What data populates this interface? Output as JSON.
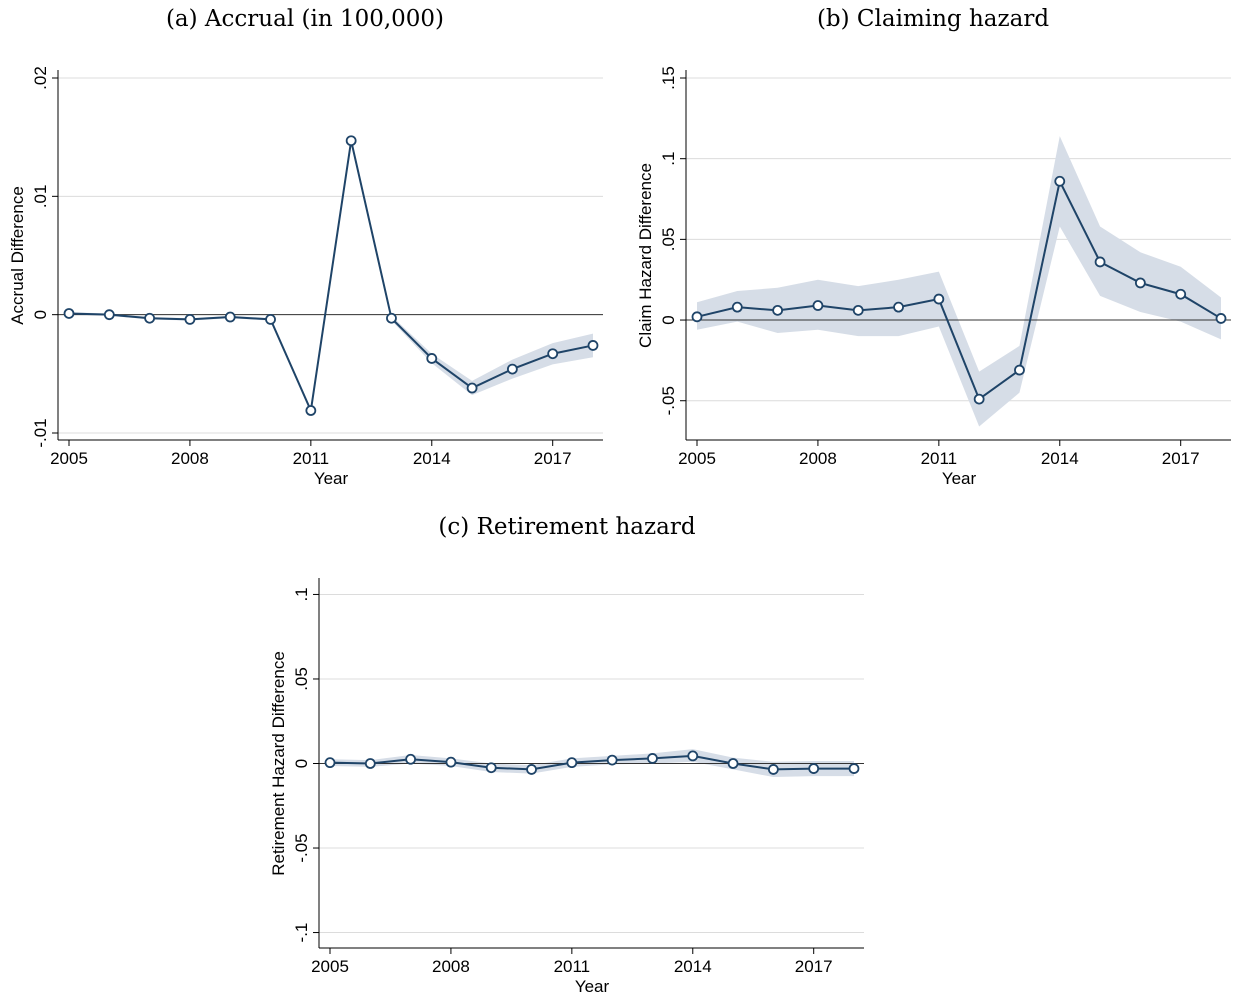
{
  "panels": [
    {
      "caption": "(a) Accrual (in 100,000)",
      "chart_data": {
        "type": "line",
        "xlabel": "Year",
        "ylabel": "Accrual Difference",
        "x": [
          2005,
          2006,
          2007,
          2008,
          2009,
          2010,
          2011,
          2012,
          2013,
          2014,
          2015,
          2016,
          2017,
          2018
        ],
        "series": [
          {
            "values": [
              0.0001,
              0.0,
              -0.0003,
              -0.0004,
              -0.0002,
              -0.0004,
              -0.0081,
              0.0147,
              -0.0003,
              -0.0037,
              -0.0062,
              -0.0046,
              -0.0033,
              -0.0026
            ],
            "ci_low": [
              0.0,
              -0.0001,
              -0.0004,
              -0.0005,
              -0.0003,
              -0.0005,
              -0.0082,
              0.0146,
              -0.0005,
              -0.0041,
              -0.0068,
              -0.0054,
              -0.0042,
              -0.0036
            ],
            "ci_high": [
              0.0002,
              0.0001,
              -0.0002,
              -0.0003,
              -0.0001,
              -0.0003,
              -0.008,
              0.0148,
              -0.0001,
              -0.0033,
              -0.0056,
              -0.0038,
              -0.0024,
              -0.0016
            ]
          }
        ],
        "xticks": [
          2005,
          2008,
          2011,
          2014,
          2017
        ],
        "xtick_labels": [
          "2005",
          "2008",
          "2011",
          "2014",
          "2017"
        ],
        "yticks": [
          -0.01,
          0,
          0.01,
          0.02
        ],
        "ytick_labels": [
          "-.01",
          "0",
          ".01",
          ".02"
        ],
        "xlim": [
          2005,
          2018
        ],
        "ylim": [
          -0.01,
          0.02
        ],
        "zero_line": 0,
        "grid": true,
        "colors": {
          "line": "#1f4468",
          "band": "#d6dde7",
          "grid": "#dcdcdc"
        }
      }
    },
    {
      "caption": "(b) Claiming hazard",
      "chart_data": {
        "type": "line",
        "xlabel": "Year",
        "ylabel": "Claim Hazard Difference",
        "x": [
          2005,
          2006,
          2007,
          2008,
          2009,
          2010,
          2011,
          2012,
          2013,
          2014,
          2015,
          2016,
          2017,
          2018
        ],
        "series": [
          {
            "values": [
              0.002,
              0.008,
              0.006,
              0.009,
              0.006,
              0.008,
              0.013,
              -0.049,
              -0.031,
              0.086,
              0.036,
              0.023,
              0.016,
              0.001
            ],
            "ci_low": [
              -0.006,
              -0.001,
              -0.008,
              -0.006,
              -0.01,
              -0.01,
              -0.004,
              -0.066,
              -0.045,
              0.058,
              0.015,
              0.005,
              -0.001,
              -0.012
            ],
            "ci_high": [
              0.011,
              0.018,
              0.02,
              0.025,
              0.021,
              0.025,
              0.03,
              -0.032,
              -0.016,
              0.114,
              0.058,
              0.042,
              0.033,
              0.014
            ]
          }
        ],
        "xticks": [
          2005,
          2008,
          2011,
          2014,
          2017
        ],
        "xtick_labels": [
          "2005",
          "2008",
          "2011",
          "2014",
          "2017"
        ],
        "yticks": [
          -0.05,
          0,
          0.05,
          0.1,
          0.15
        ],
        "ytick_labels": [
          "-.05",
          "0",
          ".05",
          ".1",
          ".15"
        ],
        "xlim": [
          2005,
          2018
        ],
        "ylim": [
          -0.07,
          0.15
        ],
        "zero_line": 0,
        "grid": true,
        "colors": {
          "line": "#1f4468",
          "band": "#d6dde7",
          "grid": "#dcdcdc"
        }
      }
    },
    {
      "caption": "(c) Retirement hazard",
      "chart_data": {
        "type": "line",
        "xlabel": "Year",
        "ylabel": "Retirement Hazard Difference",
        "x": [
          2005,
          2006,
          2007,
          2008,
          2009,
          2010,
          2011,
          2012,
          2013,
          2014,
          2015,
          2016,
          2017,
          2018
        ],
        "series": [
          {
            "values": [
              0.0005,
              0.0,
              0.0025,
              0.0008,
              -0.0025,
              -0.0035,
              0.0005,
              0.002,
              0.003,
              0.0045,
              0.0,
              -0.0035,
              -0.003,
              -0.003
            ],
            "ci_low": [
              -0.0015,
              -0.002,
              0.0,
              -0.0015,
              -0.005,
              -0.006,
              -0.002,
              -0.0005,
              0.0,
              0.001,
              -0.0035,
              -0.008,
              -0.0075,
              -0.0075
            ],
            "ci_high": [
              0.0025,
              0.002,
              0.005,
              0.003,
              0.0,
              -0.001,
              0.003,
              0.0045,
              0.006,
              0.0085,
              0.0035,
              0.001,
              0.0015,
              0.0015
            ]
          }
        ],
        "xticks": [
          2005,
          2008,
          2011,
          2014,
          2017
        ],
        "xtick_labels": [
          "2005",
          "2008",
          "2011",
          "2014",
          "2017"
        ],
        "yticks": [
          -0.1,
          -0.05,
          0,
          0.05,
          0.1
        ],
        "ytick_labels": [
          "-.1",
          "-.05",
          "0",
          ".05",
          ".1"
        ],
        "xlim": [
          2005,
          2018
        ],
        "ylim": [
          -0.105,
          0.105
        ],
        "zero_line": 0,
        "grid": true,
        "colors": {
          "line": "#1f4468",
          "band": "#d6dde7",
          "grid": "#dcdcdc"
        }
      }
    }
  ]
}
